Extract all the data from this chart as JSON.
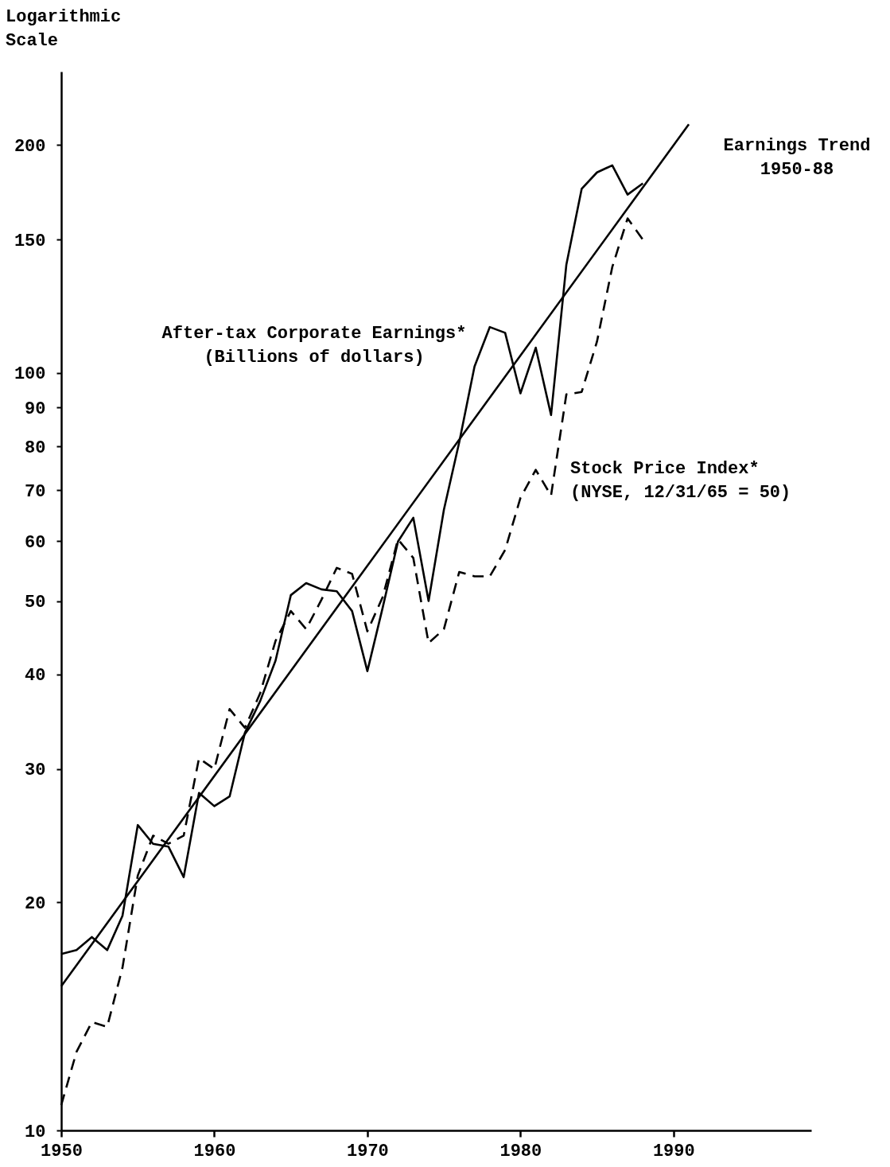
{
  "chart_data": {
    "type": "line",
    "ylabel": "Logarithmic Scale",
    "log": "y",
    "xlim": [
      1950,
      1999
    ],
    "ylim": [
      10,
      250
    ],
    "xticks": [
      1950,
      1960,
      1970,
      1980,
      1990
    ],
    "yticks": [
      10,
      20,
      30,
      40,
      50,
      60,
      70,
      80,
      90,
      100,
      150,
      200
    ],
    "x": [
      1950,
      1951,
      1952,
      1953,
      1954,
      1955,
      1956,
      1957,
      1958,
      1959,
      1960,
      1961,
      1962,
      1963,
      1964,
      1965,
      1966,
      1967,
      1968,
      1969,
      1970,
      1971,
      1972,
      1973,
      1974,
      1975,
      1976,
      1977,
      1978,
      1979,
      1980,
      1981,
      1982,
      1983,
      1984,
      1985,
      1986,
      1987,
      1988
    ],
    "series": [
      {
        "name": "After-tax Corporate Earnings*\n(Billions of dollars)",
        "type": "line",
        "color": "#000000",
        "line_style": "solid",
        "values": [
          17.1,
          17.3,
          18.0,
          17.3,
          19.2,
          25.3,
          23.9,
          23.7,
          21.6,
          27.9,
          26.8,
          27.6,
          33.5,
          36.9,
          41.7,
          50.9,
          52.8,
          51.8,
          51.5,
          48.5,
          40.4,
          49,
          59.9,
          64.4,
          50,
          66,
          81,
          102,
          115,
          113,
          94,
          108,
          88,
          139,
          175,
          184,
          188,
          172,
          178
        ]
      },
      {
        "name": "Stock Price Index*\n(NYSE, 12/31/65 = 50)",
        "type": "line",
        "color": "#000000",
        "line_style": "dashed",
        "values": [
          10.8,
          12.7,
          13.9,
          13.7,
          16.4,
          21.7,
          24.5,
          23.9,
          24.5,
          31,
          30,
          36,
          34,
          37.8,
          44.3,
          48.5,
          45.9,
          50.2,
          55.3,
          54.3,
          45.6,
          50.6,
          60.3,
          57,
          44,
          45.9,
          54.6,
          53.9,
          53.9,
          58.4,
          68.4,
          74.5,
          68.9,
          93.7,
          94.4,
          110,
          138,
          160,
          150
        ]
      },
      {
        "name": "Earnings Trend\n1950-88",
        "type": "line",
        "color": "#000000",
        "line_style": "solid",
        "x": [
          1950,
          1991
        ],
        "values": [
          15.5,
          213
        ]
      }
    ]
  }
}
